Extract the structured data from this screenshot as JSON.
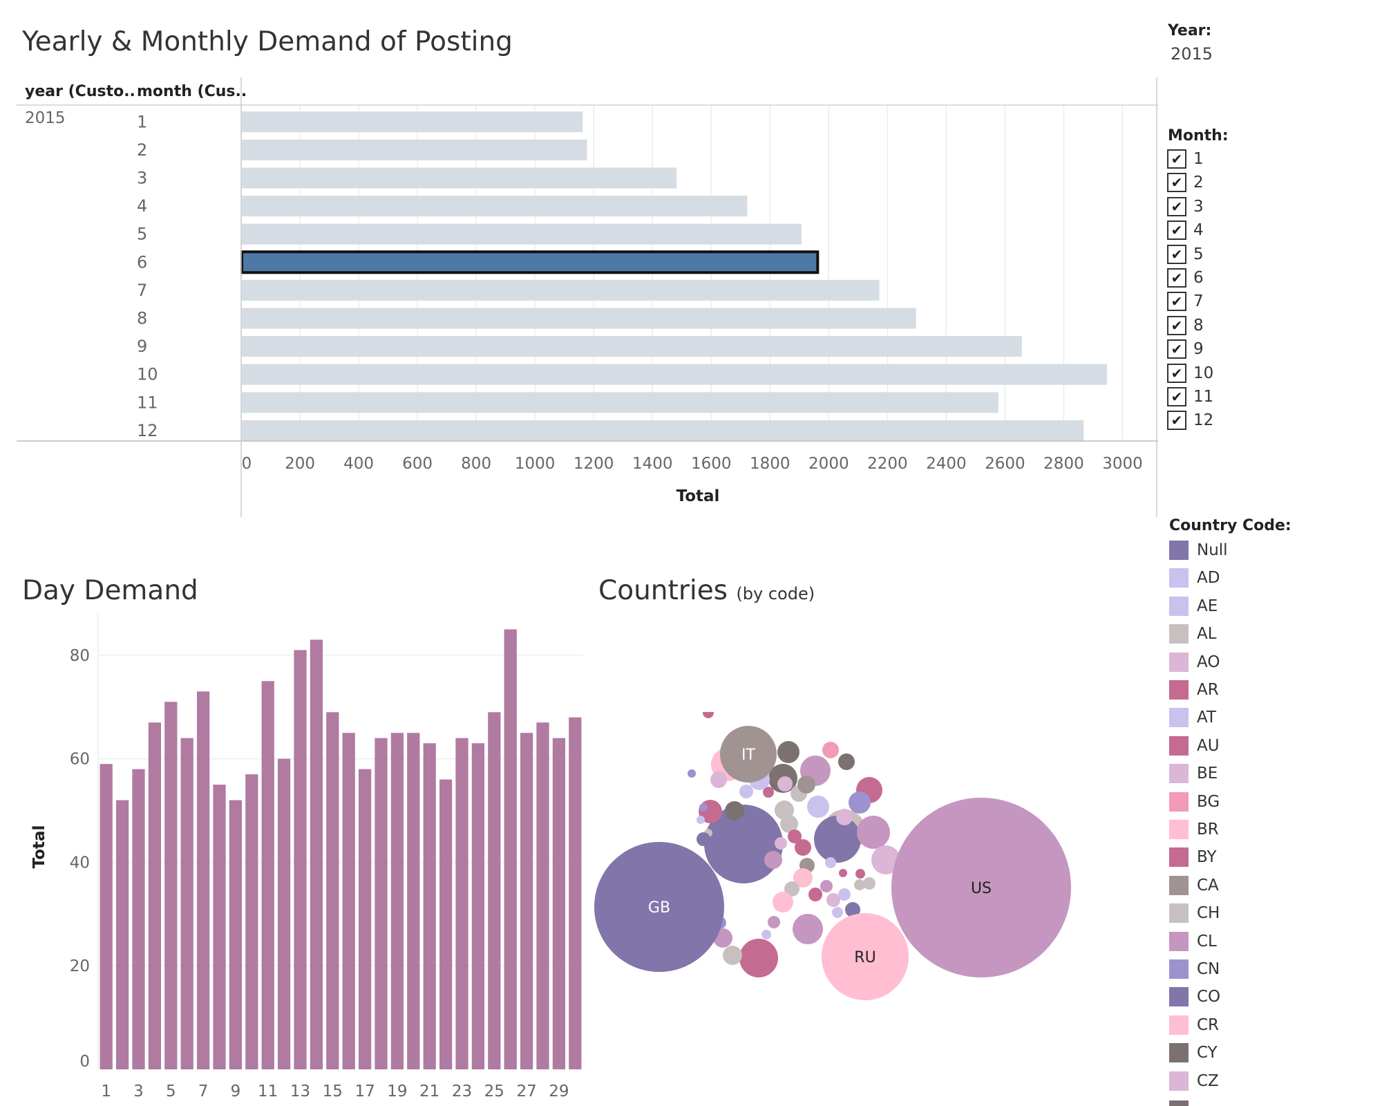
{
  "dashboard": {
    "top_title": "Yearly & Monthly Demand of Posting",
    "col_header_year": "year (Custo..",
    "col_header_month": "month (Cus..",
    "year_value": "2015",
    "day_title": "Day Demand",
    "countries_title": "Countries",
    "countries_subtitle": "(by code)"
  },
  "filters": {
    "year_title": "Year:",
    "year_value": "2015",
    "month_title": "Month:",
    "month_items": [
      "1",
      "2",
      "3",
      "4",
      "5",
      "6",
      "7",
      "8",
      "9",
      "10",
      "11",
      "12"
    ],
    "country_title": "Country Code:",
    "country_items": [
      {
        "label": "Null",
        "color": "#8175aa"
      },
      {
        "label": "AD",
        "color": "#c9c1ee"
      },
      {
        "label": "AE",
        "color": "#c9c1ee"
      },
      {
        "label": "AL",
        "color": "#c8c0c0"
      },
      {
        "label": "AO",
        "color": "#dbb6d6"
      },
      {
        "label": "AR",
        "color": "#c56a91"
      },
      {
        "label": "AT",
        "color": "#c9c1ee"
      },
      {
        "label": "AU",
        "color": "#c56a91"
      },
      {
        "label": "BE",
        "color": "#dbb6d6"
      },
      {
        "label": "BG",
        "color": "#f19bb7"
      },
      {
        "label": "BR",
        "color": "#ffbed1"
      },
      {
        "label": "BY",
        "color": "#c56a91"
      },
      {
        "label": "CA",
        "color": "#a09391"
      },
      {
        "label": "CH",
        "color": "#c8c0c0"
      },
      {
        "label": "CL",
        "color": "#c596bf"
      },
      {
        "label": "CN",
        "color": "#9b92cf"
      },
      {
        "label": "CO",
        "color": "#8175aa"
      },
      {
        "label": "CR",
        "color": "#ffbed1"
      },
      {
        "label": "CY",
        "color": "#7c7171"
      },
      {
        "label": "CZ",
        "color": "#dbb6d6"
      }
    ]
  },
  "chart_data": [
    {
      "type": "bar",
      "orientation": "horizontal",
      "title": "Yearly & Monthly Demand of Posting",
      "year": "2015",
      "categories": [
        "1",
        "2",
        "3",
        "4",
        "5",
        "6",
        "7",
        "8",
        "9",
        "10",
        "11",
        "12"
      ],
      "values": [
        1160,
        1175,
        1480,
        1720,
        1905,
        1960,
        2170,
        2295,
        2655,
        2945,
        2575,
        2865
      ],
      "highlighted_category": "6",
      "xlabel": "Total",
      "xlim": [
        0,
        3100
      ],
      "xticks": [
        0,
        200,
        400,
        600,
        800,
        1000,
        1200,
        1400,
        1600,
        1800,
        2000,
        2200,
        2400,
        2600,
        2800,
        3000
      ],
      "bar_color": "#d5dce4",
      "highlight_color": "#4e79a7",
      "grid": true
    },
    {
      "type": "bar",
      "title": "Day Demand",
      "categories": [
        "1",
        "2",
        "3",
        "4",
        "5",
        "6",
        "7",
        "8",
        "9",
        "10",
        "11",
        "12",
        "13",
        "14",
        "15",
        "16",
        "17",
        "18",
        "19",
        "20",
        "21",
        "22",
        "23",
        "24",
        "25",
        "26",
        "27",
        "28",
        "29",
        "30"
      ],
      "xtick_labels": [
        "1",
        "3",
        "5",
        "7",
        "9",
        "11",
        "13",
        "15",
        "17",
        "19",
        "21",
        "23",
        "25",
        "27",
        "29"
      ],
      "values": [
        59,
        52,
        58,
        67,
        71,
        64,
        73,
        55,
        52,
        57,
        75,
        60,
        81,
        83,
        69,
        65,
        58,
        64,
        65,
        65,
        63,
        56,
        64,
        63,
        69,
        85,
        65,
        67,
        64,
        68
      ],
      "ylabel": "Total",
      "ylim": [
        0,
        88
      ],
      "yticks": [
        0,
        20,
        40,
        60,
        80
      ],
      "bar_color": "#b07aa1",
      "grid": true
    },
    {
      "type": "bubble",
      "title": "Countries",
      "subtitle": "(by code)",
      "labeled_bubbles": [
        {
          "label": "US",
          "value": 100,
          "color": "#c596bf"
        },
        {
          "label": "GB",
          "value": 53,
          "color": "#8175aa"
        },
        {
          "label": "RU",
          "value": 24,
          "color": "#ffbed1"
        },
        {
          "label": "IT",
          "value": 10,
          "color": "#a09391"
        }
      ]
    }
  ]
}
